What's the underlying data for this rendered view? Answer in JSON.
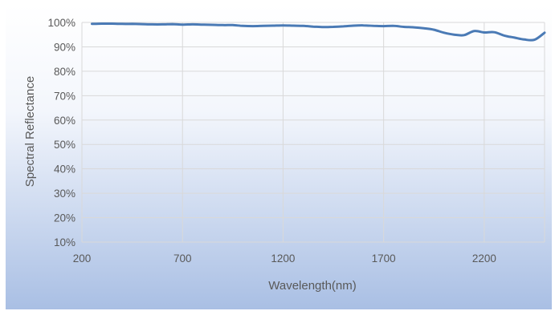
{
  "chart_data": {
    "type": "line",
    "title": "",
    "xlabel": "Wavelength(nm)",
    "ylabel": "Spectral Reflectance",
    "xlim": [
      200,
      2500
    ],
    "ylim": [
      10,
      100
    ],
    "x_ticks": [
      200,
      700,
      1200,
      1700,
      2200
    ],
    "y_ticks": [
      10,
      20,
      30,
      40,
      50,
      60,
      70,
      80,
      90,
      100
    ],
    "y_tick_format": "percent",
    "grid": true,
    "legend": "none",
    "colors": {
      "line": "#4a7ab5",
      "grid": "#d9d9d9",
      "background_top": "#ffffff",
      "background_bottom": "#a9bfe4"
    },
    "series": [
      {
        "x": [
          250,
          300,
          350,
          400,
          450,
          500,
          550,
          600,
          650,
          700,
          750,
          800,
          850,
          900,
          950,
          1000,
          1050,
          1100,
          1150,
          1200,
          1250,
          1300,
          1350,
          1400,
          1450,
          1500,
          1550,
          1600,
          1650,
          1700,
          1750,
          1800,
          1850,
          1900,
          1950,
          2000,
          2050,
          2100,
          2150,
          2200,
          2250,
          2300,
          2350,
          2400,
          2450,
          2500
        ],
        "values": [
          99.4,
          99.5,
          99.5,
          99.4,
          99.4,
          99.3,
          99.2,
          99.2,
          99.3,
          99.1,
          99.2,
          99.1,
          99.0,
          98.9,
          98.9,
          98.6,
          98.5,
          98.6,
          98.7,
          98.8,
          98.7,
          98.6,
          98.3,
          98.1,
          98.2,
          98.4,
          98.7,
          98.8,
          98.6,
          98.5,
          98.6,
          98.2,
          98.0,
          97.6,
          97.0,
          95.8,
          95.0,
          94.8,
          96.5,
          95.9,
          96.0,
          94.6,
          93.8,
          93.0,
          92.9,
          95.8
        ]
      }
    ]
  }
}
